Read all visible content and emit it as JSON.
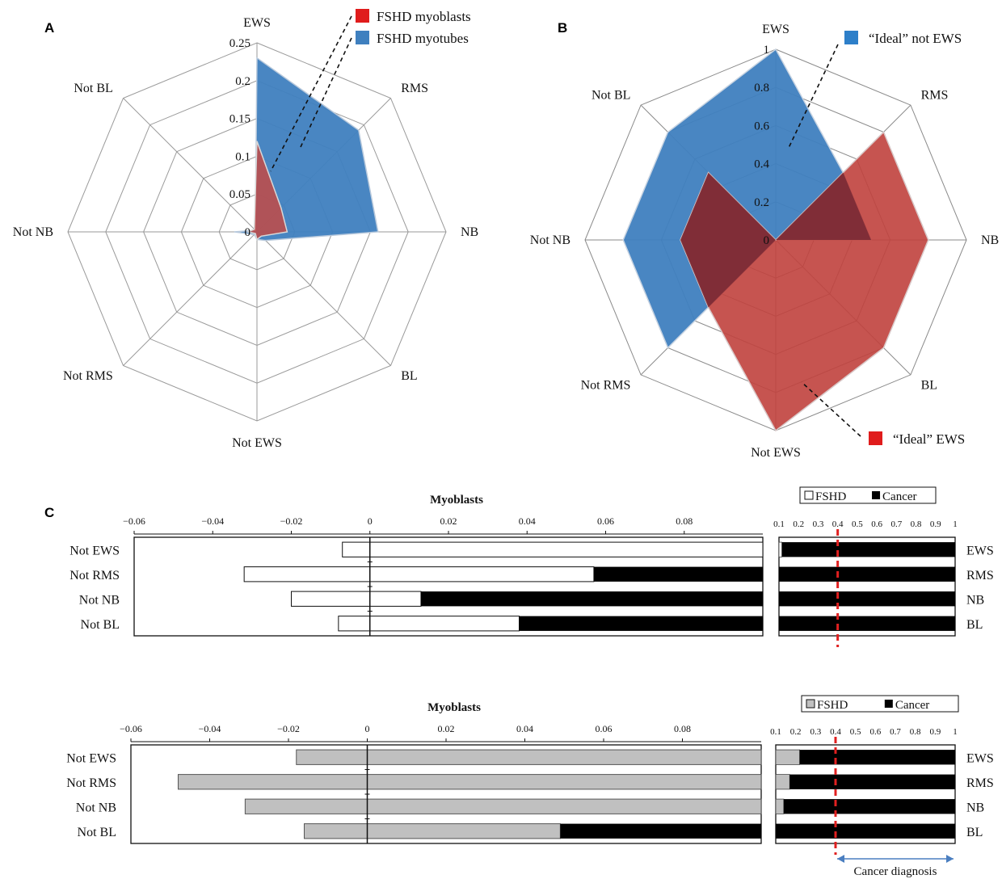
{
  "panel_labels": {
    "a": "A",
    "b": "B",
    "c": "C"
  },
  "colors": {
    "myoblasts_red": "#c24a45",
    "myotubes_blue": "#3f80bf",
    "overlap": "#7a2a35",
    "fshd_gray": "#c0c0c0",
    "cancer_black": "#000000",
    "threshold_red": "#e02020",
    "arrow_blue": "#4a7ec0"
  },
  "chart_data": [
    {
      "id": "A",
      "type": "radar",
      "axes": [
        "EWS",
        "RMS",
        "NB",
        "BL",
        "Not EWS",
        "Not RMS",
        "Not NB",
        "Not BL"
      ],
      "rlim": [
        0,
        0.25
      ],
      "ticks": [
        0,
        0.05,
        0.1,
        0.15,
        0.2,
        0.25
      ],
      "tick_labels": [
        "0",
        "0.05",
        "0.1",
        "0.15",
        "0.2",
        "0.25"
      ],
      "series": [
        {
          "name": "FSHD myotubes",
          "values": [
            0.23,
            0.19,
            0.16,
            0.016,
            0.01,
            0.005,
            0.03,
            0.003
          ]
        },
        {
          "name": "FSHD myoblasts",
          "values": [
            0.12,
            0.045,
            0.04,
            0.008,
            0.01,
            0.003,
            0.012,
            0.005
          ]
        }
      ]
    },
    {
      "id": "B",
      "type": "radar",
      "axes": [
        "EWS",
        "RMS",
        "NB",
        "BL",
        "Not EWS",
        "Not RMS",
        "Not NB",
        "Not BL"
      ],
      "rlim": [
        0,
        1
      ],
      "ticks": [
        0,
        0.2,
        0.4,
        0.6,
        0.8,
        1
      ],
      "tick_labels": [
        "0",
        "0.2",
        "0.4",
        "0.6",
        "0.8",
        "1"
      ],
      "series": [
        {
          "name": "“Ideal” not EWS",
          "values": [
            1.0,
            0.5,
            0.5,
            0.0,
            0.0,
            0.8,
            0.8,
            0.8
          ]
        },
        {
          "name": "“Ideal” EWS",
          "values": [
            0.0,
            0.8,
            0.8,
            0.8,
            1.0,
            0.5,
            0.5,
            0.5
          ]
        }
      ]
    },
    {
      "id": "C-top-left",
      "type": "bar",
      "title": "Myoblasts",
      "categories": [
        "Not EWS",
        "Not RMS",
        "Not NB",
        "Not BL"
      ],
      "xlim": [
        -0.06,
        0.1
      ],
      "ticks": [
        -0.06,
        -0.04,
        -0.02,
        0,
        0.02,
        0.04,
        0.06,
        0.08
      ],
      "tick_labels": [
        "−0.06",
        "−0.04",
        "−0.02",
        "0",
        "0.02",
        "0.04",
        "0.06",
        "0.08"
      ],
      "series": [
        {
          "name": "FSHD",
          "left": [
            -0.007,
            -0.032,
            -0.02,
            -0.008
          ],
          "right": [
            0.1,
            0.057,
            0.013,
            0.038
          ]
        },
        {
          "name": "Cancer",
          "from": [
            0.1,
            0.057,
            0.013,
            0.038
          ],
          "to": [
            0.1,
            0.1,
            0.1,
            0.1
          ]
        }
      ]
    },
    {
      "id": "C-top-right",
      "type": "bar",
      "legend": [
        "FSHD",
        "Cancer"
      ],
      "categories": [
        "EWS",
        "RMS",
        "NB",
        "BL"
      ],
      "xlim": [
        0.1,
        1
      ],
      "ticks": [
        0.1,
        0.2,
        0.3,
        0.4,
        0.5,
        0.6,
        0.7,
        0.8,
        0.9,
        1
      ],
      "tick_labels": [
        "0.1",
        "0.2",
        "0.3",
        "0.4",
        "0.5",
        "0.6",
        "0.7",
        "0.8",
        "0.9",
        "1"
      ],
      "threshold": 0.4,
      "series": [
        {
          "name": "FSHD",
          "values": [
            0.115,
            0.1,
            0.1,
            0.1
          ]
        },
        {
          "name": "Cancer",
          "values": [
            1,
            1,
            1,
            1
          ]
        }
      ]
    },
    {
      "id": "C-bottom-left",
      "type": "bar",
      "title": "Myoblasts",
      "categories": [
        "Not EWS",
        "Not RMS",
        "Not NB",
        "Not BL"
      ],
      "xlim": [
        -0.06,
        0.1
      ],
      "ticks": [
        -0.06,
        -0.04,
        -0.02,
        0,
        0.02,
        0.04,
        0.06,
        0.08
      ],
      "tick_labels": [
        "−0.06",
        "−0.04",
        "−0.02",
        "0",
        "0.02",
        "0.04",
        "0.06",
        "0.08"
      ],
      "series": [
        {
          "name": "FSHD",
          "left": [
            -0.018,
            -0.048,
            -0.031,
            -0.016
          ],
          "right": [
            0.1,
            0.1,
            0.1,
            0.049
          ]
        },
        {
          "name": "Cancer",
          "from": [
            0.1,
            0.1,
            0.1,
            0.049
          ],
          "to": [
            0.1,
            0.1,
            0.1,
            0.1
          ]
        }
      ]
    },
    {
      "id": "C-bottom-right",
      "type": "bar",
      "legend": [
        "FSHD",
        "Cancer"
      ],
      "categories": [
        "EWS",
        "RMS",
        "NB",
        "BL"
      ],
      "xlim": [
        0.1,
        1
      ],
      "ticks": [
        0.1,
        0.2,
        0.3,
        0.4,
        0.5,
        0.6,
        0.7,
        0.8,
        0.9,
        1
      ],
      "tick_labels": [
        "0.1",
        "0.2",
        "0.3",
        "0.4",
        "0.5",
        "0.6",
        "0.7",
        "0.8",
        "0.9",
        "1"
      ],
      "threshold": 0.4,
      "annotation": "Cancer diagnosis",
      "series": [
        {
          "name": "FSHD",
          "values": [
            0.22,
            0.17,
            0.14,
            0.1
          ]
        },
        {
          "name": "Cancer",
          "values": [
            1,
            1,
            1,
            1
          ]
        }
      ]
    }
  ]
}
